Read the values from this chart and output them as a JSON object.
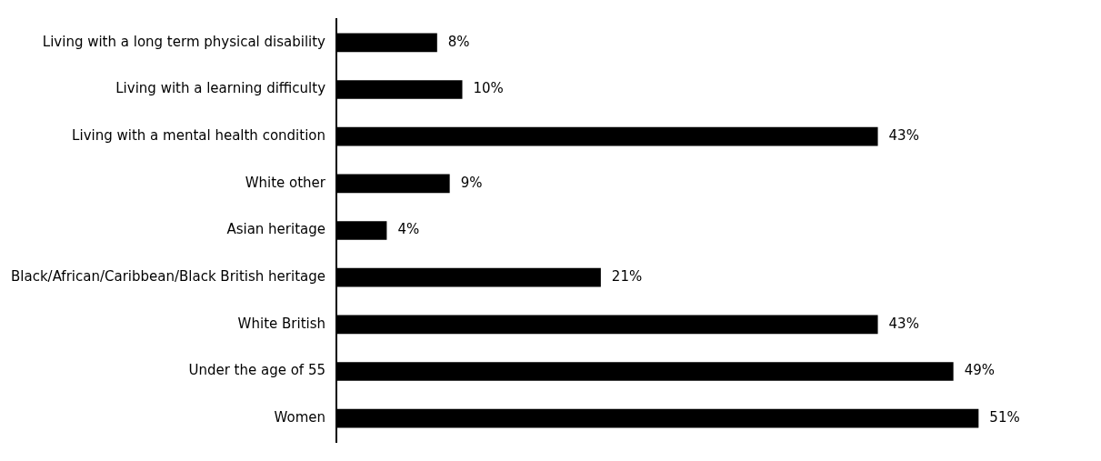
{
  "chart_data": {
    "type": "bar",
    "orientation": "horizontal",
    "categories": [
      "Living with a long term physical disability",
      "Living with a learning difficulty",
      "Living with a mental health condition",
      "White other",
      "Asian heritage",
      "Black/African/Caribbean/Black British heritage",
      "White British",
      "Under the age of 55",
      "Women"
    ],
    "values": [
      8,
      10,
      43,
      9,
      4,
      21,
      43,
      49,
      51
    ],
    "value_labels": [
      "8%",
      "10%",
      "43%",
      "9%",
      "4%",
      "21%",
      "43%",
      "49%",
      "51%"
    ],
    "color": "#000000"
  }
}
